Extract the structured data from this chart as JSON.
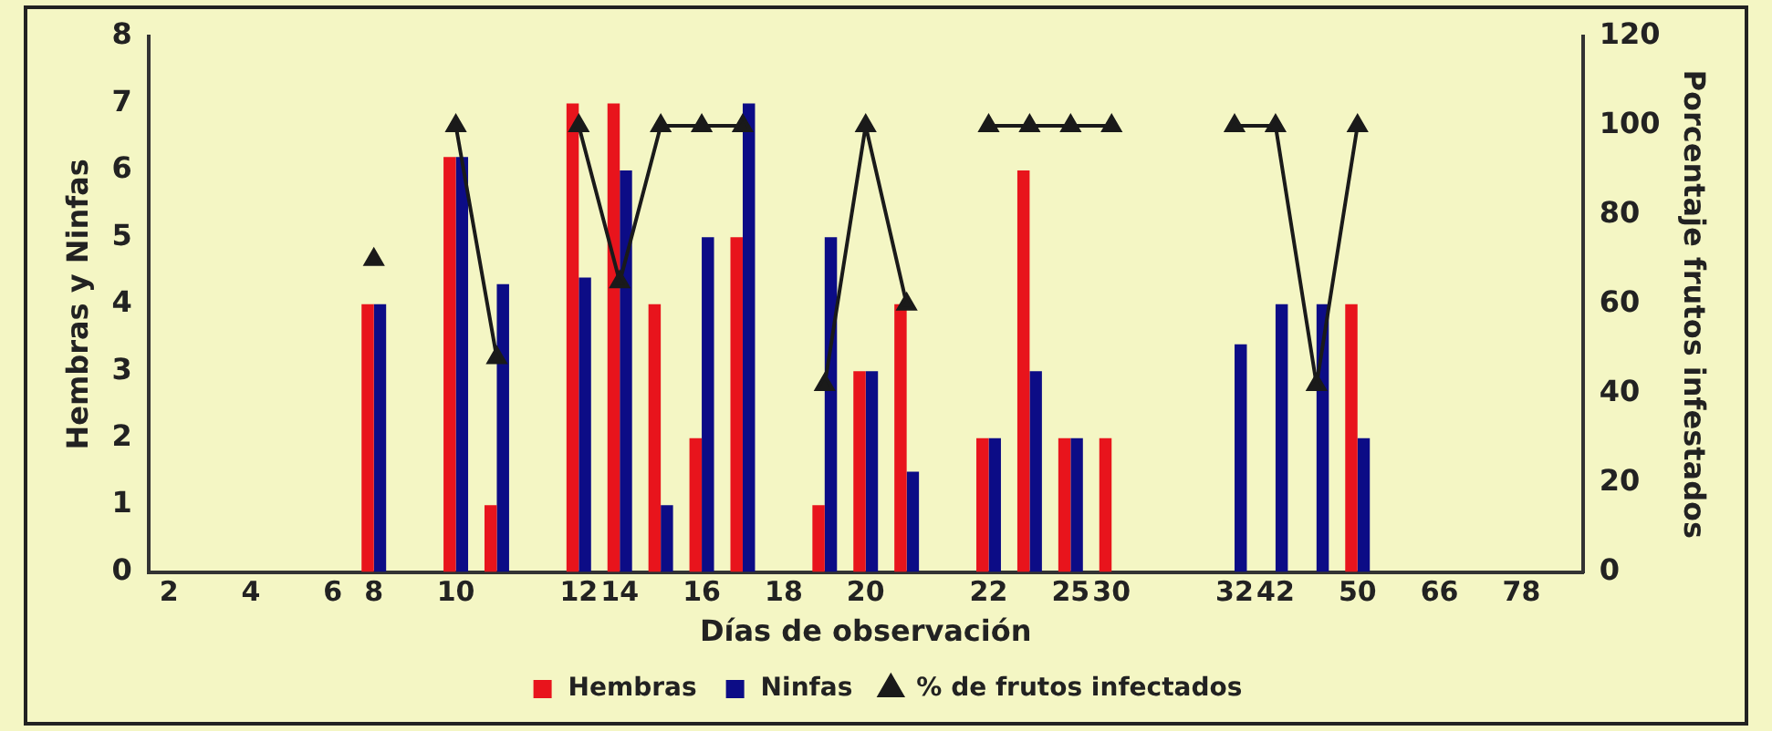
{
  "chart_data": {
    "type": "bar",
    "xlabel": "Días de observación",
    "ylabel": "Hembras y Ninfas",
    "y2label": "Porcentaje frutos infestados",
    "categories": [
      "2",
      null,
      "4",
      null,
      "6",
      "8",
      null,
      "10",
      null,
      null,
      "12",
      "14",
      null,
      "16",
      null,
      "18",
      null,
      "20",
      null,
      null,
      "22",
      null,
      "25",
      "30",
      null,
      null,
      "32",
      "42",
      null,
      "50",
      null,
      "66",
      null,
      "78",
      null
    ],
    "series": [
      {
        "name": "Hembras",
        "color": "#e8141c",
        "values": [
          null,
          null,
          null,
          null,
          null,
          4,
          null,
          6.2,
          1,
          null,
          7,
          7,
          4,
          2,
          5,
          null,
          1,
          3,
          4,
          null,
          2,
          6,
          2,
          2,
          null,
          null,
          null,
          null,
          null,
          4,
          null,
          null,
          null,
          null,
          null
        ]
      },
      {
        "name": "Ninfas",
        "color": "#0c0c86",
        "values": [
          null,
          null,
          null,
          null,
          null,
          4,
          null,
          6.2,
          4.3,
          null,
          4.4,
          6,
          1,
          5,
          7,
          null,
          5,
          3,
          1.5,
          null,
          2,
          3,
          2,
          null,
          null,
          null,
          3.4,
          4,
          4,
          2,
          null,
          null,
          null,
          null,
          null
        ]
      },
      {
        "name": "% de frutos infectados",
        "type": "line",
        "axis": "y2",
        "color": "#1a1a1a",
        "marker": "triangle",
        "values": [
          null,
          null,
          null,
          null,
          null,
          70,
          null,
          100,
          48,
          null,
          100,
          65,
          100,
          100,
          100,
          null,
          42,
          100,
          60,
          null,
          100,
          100,
          100,
          100,
          null,
          null,
          100,
          100,
          42,
          100,
          null,
          null,
          null,
          null,
          null
        ]
      }
    ],
    "ylim": [
      0,
      8
    ],
    "yticks": [
      0,
      1,
      2,
      3,
      4,
      5,
      6,
      7,
      8
    ],
    "y2lim": [
      0,
      120
    ],
    "y2ticks": [
      0,
      20,
      40,
      60,
      80,
      100,
      120
    ],
    "grid": false,
    "legend": "bottom"
  }
}
